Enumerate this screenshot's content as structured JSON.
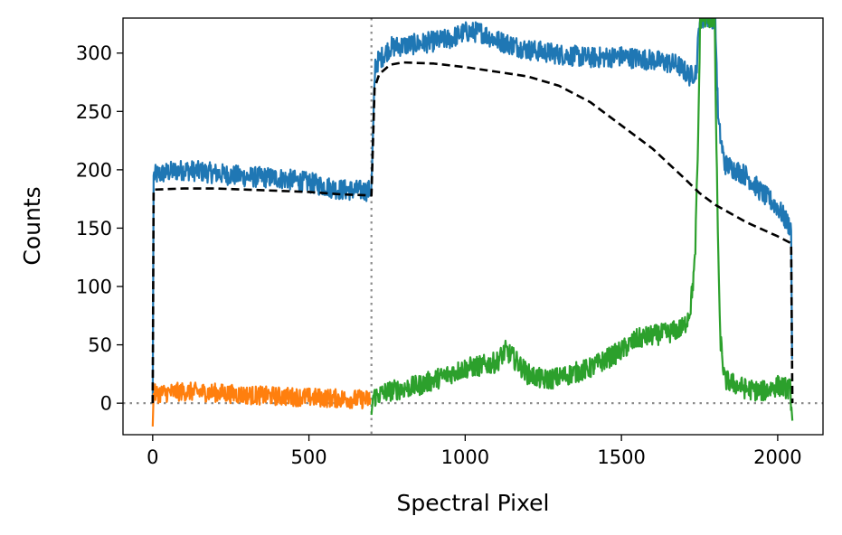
{
  "chart_data": {
    "type": "line",
    "title": "",
    "xlabel": "Spectral Pixel",
    "ylabel": "Counts",
    "xlim": [
      -95,
      2145
    ],
    "ylim": [
      -27,
      330
    ],
    "xticks": [
      0,
      500,
      1000,
      1500,
      2000
    ],
    "yticks": [
      0,
      50,
      100,
      150,
      200,
      250,
      300
    ],
    "grid": false,
    "legend": "none",
    "reference_lines": [
      {
        "orientation": "vertical",
        "value": 700,
        "style": "dotted",
        "color": "#8c8c8c"
      },
      {
        "orientation": "horizontal",
        "value": 0,
        "style": "dotted",
        "color": "#8c8c8c"
      }
    ],
    "series": [
      {
        "color": "#1f77b4",
        "style": "solid",
        "noise_amplitude": 10,
        "points": [
          [
            0,
            0
          ],
          [
            3,
            195
          ],
          [
            50,
            198
          ],
          [
            100,
            200
          ],
          [
            200,
            197
          ],
          [
            300,
            194
          ],
          [
            400,
            193
          ],
          [
            500,
            189
          ],
          [
            600,
            183
          ],
          [
            690,
            182
          ],
          [
            700,
            184
          ],
          [
            712,
            290
          ],
          [
            760,
            305
          ],
          [
            850,
            308
          ],
          [
            950,
            312
          ],
          [
            1000,
            318
          ],
          [
            1050,
            318
          ],
          [
            1100,
            311
          ],
          [
            1200,
            303
          ],
          [
            1300,
            299
          ],
          [
            1400,
            296
          ],
          [
            1500,
            297
          ],
          [
            1600,
            294
          ],
          [
            1680,
            290
          ],
          [
            1720,
            280
          ],
          [
            1740,
            285
          ],
          [
            1750,
            330
          ],
          [
            1800,
            330
          ],
          [
            1810,
            240
          ],
          [
            1830,
            205
          ],
          [
            1900,
            195
          ],
          [
            1950,
            180
          ],
          [
            2000,
            168
          ],
          [
            2030,
            155
          ],
          [
            2043,
            150
          ],
          [
            2047,
            0
          ]
        ]
      },
      {
        "color": "#ff7f0e",
        "style": "solid",
        "noise_amplitude": 9,
        "points": [
          [
            0,
            -20
          ],
          [
            3,
            8
          ],
          [
            100,
            10
          ],
          [
            200,
            9
          ],
          [
            300,
            7
          ],
          [
            400,
            6
          ],
          [
            500,
            5
          ],
          [
            600,
            4
          ],
          [
            700,
            3
          ]
        ]
      },
      {
        "color": "#2ca02c",
        "style": "solid",
        "noise_amplitude": 10,
        "points": [
          [
            700,
            -10
          ],
          [
            705,
            5
          ],
          [
            750,
            10
          ],
          [
            850,
            15
          ],
          [
            950,
            25
          ],
          [
            1000,
            30
          ],
          [
            1050,
            32
          ],
          [
            1100,
            35
          ],
          [
            1130,
            45
          ],
          [
            1150,
            40
          ],
          [
            1200,
            25
          ],
          [
            1250,
            20
          ],
          [
            1300,
            22
          ],
          [
            1400,
            30
          ],
          [
            1500,
            45
          ],
          [
            1550,
            55
          ],
          [
            1600,
            58
          ],
          [
            1650,
            60
          ],
          [
            1700,
            65
          ],
          [
            1720,
            80
          ],
          [
            1735,
            120
          ],
          [
            1745,
            220
          ],
          [
            1752,
            330
          ],
          [
            1798,
            330
          ],
          [
            1805,
            200
          ],
          [
            1815,
            60
          ],
          [
            1830,
            20
          ],
          [
            1900,
            12
          ],
          [
            1950,
            10
          ],
          [
            2000,
            15
          ],
          [
            2040,
            12
          ],
          [
            2047,
            -15
          ]
        ]
      },
      {
        "color": "#000000",
        "style": "dashed",
        "noise_amplitude": 0,
        "points": [
          [
            0,
            0
          ],
          [
            3,
            183
          ],
          [
            100,
            184
          ],
          [
            200,
            184
          ],
          [
            300,
            183
          ],
          [
            400,
            182
          ],
          [
            500,
            181
          ],
          [
            600,
            179
          ],
          [
            700,
            178
          ],
          [
            710,
            270
          ],
          [
            725,
            282
          ],
          [
            760,
            290
          ],
          [
            800,
            292
          ],
          [
            900,
            291
          ],
          [
            1000,
            288
          ],
          [
            1100,
            284
          ],
          [
            1200,
            280
          ],
          [
            1300,
            272
          ],
          [
            1400,
            258
          ],
          [
            1500,
            238
          ],
          [
            1600,
            218
          ],
          [
            1700,
            193
          ],
          [
            1750,
            180
          ],
          [
            1800,
            170
          ],
          [
            1900,
            155
          ],
          [
            2000,
            143
          ],
          [
            2043,
            137
          ],
          [
            2047,
            0
          ]
        ]
      }
    ]
  }
}
